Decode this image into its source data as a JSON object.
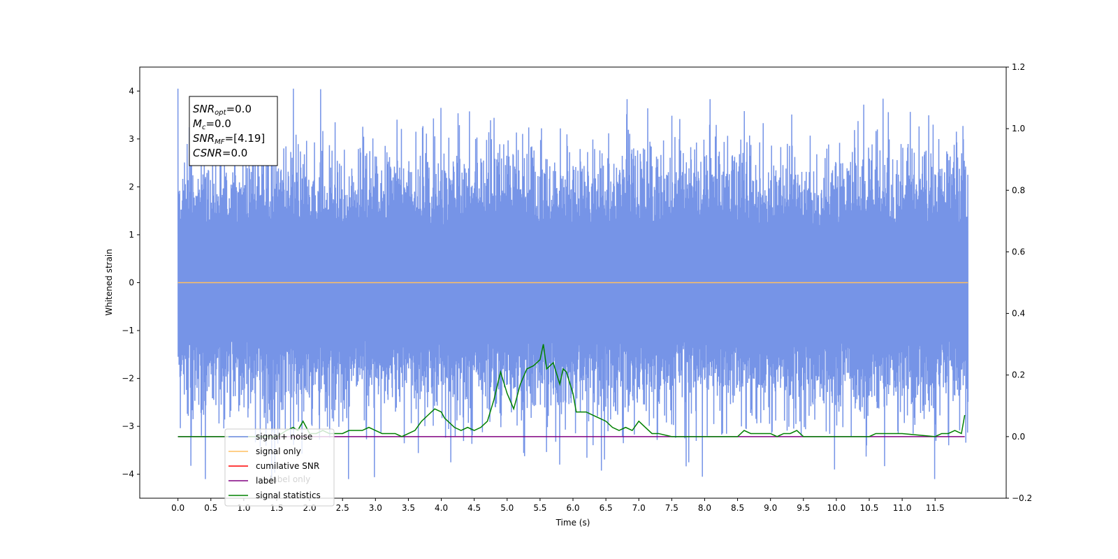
{
  "chart_data": {
    "type": "line",
    "xlabel": "Time (s)",
    "ylabel": "Whitened strain",
    "xlim": [
      -0.58,
      12.58
    ],
    "ylim_left": [
      -4.5,
      4.5
    ],
    "ylim_right": [
      -0.2,
      1.2
    ],
    "x_ticks": [
      "0.0",
      "0.5",
      "1.0",
      "1.5",
      "2.0",
      "2.5",
      "3.0",
      "3.5",
      "4.0",
      "4.5",
      "5.0",
      "5.5",
      "6.0",
      "6.5",
      "7.0",
      "7.5",
      "8.0",
      "8.5",
      "9.0",
      "9.5",
      "10.0",
      "10.5",
      "11.0",
      "11.5"
    ],
    "y_ticks_left": [
      "−4",
      "−3",
      "−2",
      "−1",
      "0",
      "1",
      "2",
      "3",
      "4"
    ],
    "y_ticks_right": [
      "−0.2",
      "0.0",
      "0.2",
      "0.4",
      "0.6",
      "0.8",
      "1.0",
      "1.2"
    ],
    "annotation": [
      {
        "base": "SNR",
        "sub": "opt",
        "value": "=0.0"
      },
      {
        "base": "M",
        "sub": "c",
        "value": "=0.0"
      },
      {
        "base": "SNR",
        "sub": "MF",
        "value": "=[4.19]"
      },
      {
        "base": "CSNR",
        "sub": "",
        "value": "=0.0"
      }
    ],
    "legend_position": "lower-left",
    "legend": [
      {
        "label": "signal+ noise",
        "color": "#6f8ee6"
      },
      {
        "label": "signal only",
        "color": "#ffbf60"
      },
      {
        "label": "cumilative SNR",
        "color": "#ff0000"
      },
      {
        "label": "label",
        "color": "#800080"
      },
      {
        "label": "signal statistics",
        "color": "#008000"
      }
    ],
    "hidden_legend_text": "label only",
    "series": [
      {
        "name": "signal+ noise",
        "axis": "left",
        "color": "#6f8ee6",
        "x_range": [
          0.0,
          12.0
        ],
        "amplitude_approx": 2.5
      },
      {
        "name": "signal only",
        "axis": "left",
        "color": "#ffbf60",
        "x": [
          0.0,
          12.0
        ],
        "values": [
          0.0,
          0.0
        ]
      },
      {
        "name": "label",
        "axis": "right",
        "color": "#800080",
        "x": [
          0.0,
          11.95
        ],
        "values": [
          0.0,
          0.0
        ]
      },
      {
        "name": "signal statistics",
        "axis": "right",
        "color": "#008000",
        "x": [
          0.0,
          1.5,
          1.65,
          1.75,
          1.82,
          1.9,
          2.0,
          2.1,
          2.2,
          2.3,
          2.4,
          2.5,
          2.6,
          2.7,
          2.8,
          2.9,
          3.0,
          3.1,
          3.2,
          3.3,
          3.4,
          3.5,
          3.6,
          3.7,
          3.8,
          3.9,
          4.0,
          4.05,
          4.1,
          4.2,
          4.3,
          4.4,
          4.5,
          4.6,
          4.7,
          4.8,
          4.9,
          5.0,
          5.1,
          5.2,
          5.3,
          5.4,
          5.5,
          5.55,
          5.6,
          5.7,
          5.8,
          5.85,
          5.9,
          6.0,
          6.05,
          6.1,
          6.2,
          6.3,
          6.4,
          6.5,
          6.6,
          6.7,
          6.8,
          6.9,
          7.0,
          7.1,
          7.2,
          7.3,
          7.5,
          8.0,
          8.5,
          8.6,
          8.7,
          8.8,
          9.0,
          9.1,
          9.2,
          9.3,
          9.4,
          9.5,
          10.0,
          10.5,
          10.6,
          11.0,
          11.5,
          11.6,
          11.7,
          11.8,
          11.9,
          11.95
        ],
        "values": [
          0.0,
          0.0,
          0.02,
          0.03,
          0.02,
          0.05,
          0.01,
          0.01,
          0.02,
          0.01,
          0.01,
          0.01,
          0.02,
          0.02,
          0.02,
          0.03,
          0.02,
          0.01,
          0.01,
          0.01,
          0.0,
          0.01,
          0.02,
          0.05,
          0.07,
          0.09,
          0.08,
          0.06,
          0.05,
          0.03,
          0.02,
          0.03,
          0.02,
          0.03,
          0.05,
          0.12,
          0.21,
          0.14,
          0.09,
          0.17,
          0.22,
          0.23,
          0.25,
          0.3,
          0.22,
          0.24,
          0.17,
          0.22,
          0.21,
          0.14,
          0.08,
          0.08,
          0.08,
          0.07,
          0.06,
          0.05,
          0.03,
          0.02,
          0.03,
          0.02,
          0.05,
          0.03,
          0.01,
          0.01,
          0.0,
          0.0,
          0.0,
          0.02,
          0.01,
          0.01,
          0.01,
          0.0,
          0.01,
          0.01,
          0.02,
          0.0,
          0.0,
          0.0,
          0.01,
          0.01,
          0.0,
          0.01,
          0.01,
          0.02,
          0.01,
          0.07
        ]
      }
    ]
  }
}
